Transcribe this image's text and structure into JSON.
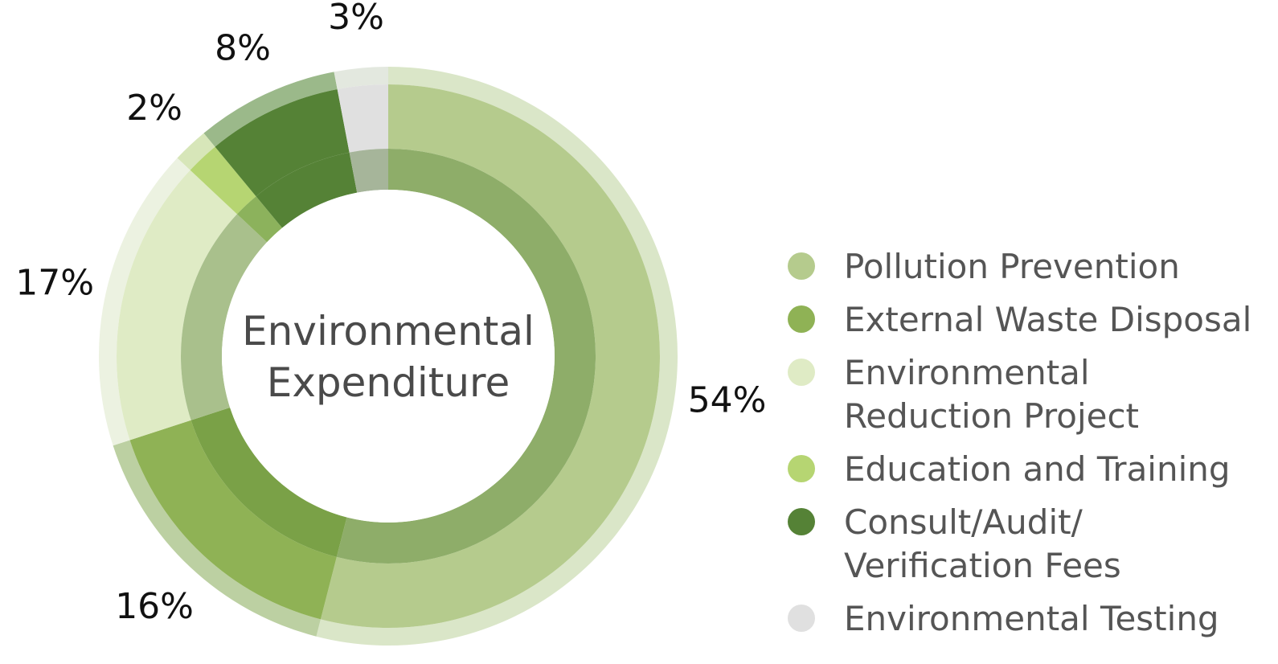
{
  "chart_data": {
    "type": "pie",
    "subtype": "donut",
    "title": "Environmental Expenditure",
    "title_lines": [
      "Environmental",
      "Expenditure"
    ],
    "categories": [
      "Pollution Prevention",
      "External Waste Disposal",
      "Environmental Reduction Project",
      "Education and Training",
      "Consult/Audit/ Verification Fees",
      "Environmental Testing"
    ],
    "values": [
      54,
      16,
      17,
      2,
      8,
      3
    ],
    "value_labels": [
      "54%",
      "16%",
      "17%",
      "2%",
      "8%",
      "3%"
    ],
    "unit": "%",
    "legend_position": "right",
    "legend": [
      {
        "lines": [
          "Pollution Prevention"
        ],
        "color": "#b5cb8d"
      },
      {
        "lines": [
          "External Waste Disposal"
        ],
        "color": "#8fb255"
      },
      {
        "lines": [
          "Environmental",
          "Reduction Project"
        ],
        "color": "#dfebc5"
      },
      {
        "lines": [
          "Education and Training"
        ],
        "color": "#b6d572"
      },
      {
        "lines": [
          "Consult/Audit/",
          "Verification Fees"
        ],
        "color": "#558236"
      },
      {
        "lines": [
          "Environmental Testing"
        ],
        "color": "#e0e0e0"
      }
    ],
    "colors": {
      "main": [
        "#b5cb8d",
        "#8fb255",
        "#dfebc5",
        "#b6d572",
        "#558236",
        "#e0e0e0"
      ],
      "inner": [
        "#8ead69",
        "#7aa147",
        "#a9c08c",
        "#8cb25c",
        "#558236",
        "#a6b59a"
      ],
      "outer": [
        "#dae6c8",
        "#bcd0a2",
        "#ecf2e1",
        "#d7e6b9",
        "#9bb98a",
        "#e3e8df"
      ],
      "center_fill": "#ffffff",
      "title_color": "#4a4a4a",
      "label_color": "#111111",
      "legend_text_color": "#555555"
    }
  }
}
